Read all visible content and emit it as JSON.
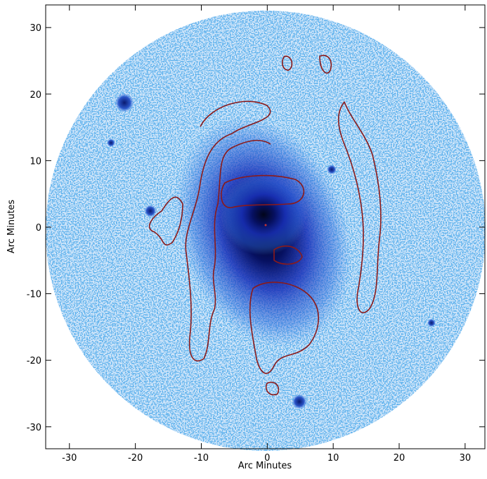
{
  "chart_data": {
    "type": "image",
    "x_label": "Arc Minutes",
    "y_label": "Arc Minutes",
    "xlim": [
      -33.6,
      33.0
    ],
    "ylim": [
      -33.3,
      33.4
    ],
    "xticks": [
      -30,
      -20,
      -10,
      0,
      10,
      20,
      30
    ],
    "yticks": [
      -30,
      -20,
      -10,
      0,
      10,
      20,
      30
    ]
  }
}
